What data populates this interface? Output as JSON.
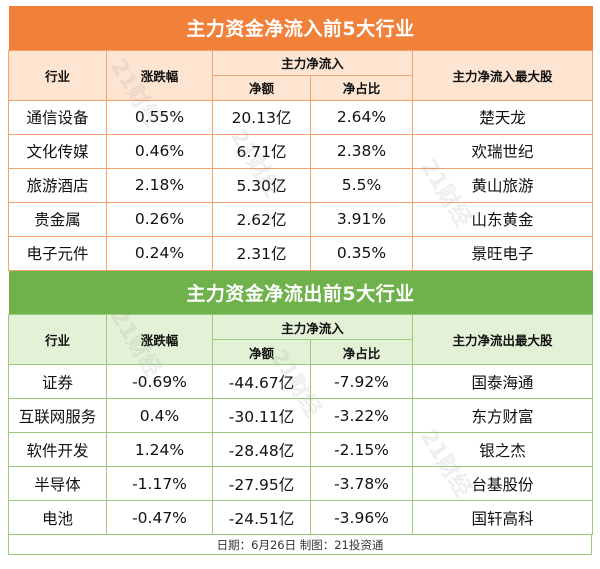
{
  "inflow": {
    "title": "主力资金净流入前5大行业",
    "headers": {
      "industry": "行业",
      "change": "涨跌幅",
      "net_inflow_group": "主力净流入",
      "net_amount": "净额",
      "net_ratio": "净占比",
      "top_stock": "主力净流入最大股"
    },
    "rows": [
      {
        "industry": "通信设备",
        "change": "0.55%",
        "amount": "20.13亿",
        "ratio": "2.64%",
        "stock": "楚天龙"
      },
      {
        "industry": "文化传媒",
        "change": "0.46%",
        "amount": "6.71亿",
        "ratio": "2.38%",
        "stock": "欢瑞世纪"
      },
      {
        "industry": "旅游酒店",
        "change": "2.18%",
        "amount": "5.30亿",
        "ratio": "5.5%",
        "stock": "黄山旅游"
      },
      {
        "industry": "贵金属",
        "change": "0.26%",
        "amount": "2.62亿",
        "ratio": "3.91%",
        "stock": "山东黄金"
      },
      {
        "industry": "电子元件",
        "change": "0.24%",
        "amount": "2.31亿",
        "ratio": "0.35%",
        "stock": "景旺电子"
      }
    ]
  },
  "outflow": {
    "title": "主力资金净流出前5大行业",
    "headers": {
      "industry": "行业",
      "change": "涨跌幅",
      "net_inflow_group": "主力净流入",
      "net_amount": "净额",
      "net_ratio": "净占比",
      "top_stock": "主力净流出最大股"
    },
    "rows": [
      {
        "industry": "证券",
        "change": "-0.69%",
        "amount": "-44.67亿",
        "ratio": "-7.92%",
        "stock": "国泰海通"
      },
      {
        "industry": "互联网服务",
        "change": "0.4%",
        "amount": "-30.11亿",
        "ratio": "-3.22%",
        "stock": "东方财富"
      },
      {
        "industry": "软件开发",
        "change": "1.24%",
        "amount": "-28.48亿",
        "ratio": "-2.15%",
        "stock": "银之杰"
      },
      {
        "industry": "半导体",
        "change": "-1.17%",
        "amount": "-27.95亿",
        "ratio": "-3.78%",
        "stock": "台基股份"
      },
      {
        "industry": "电池",
        "change": "-0.47%",
        "amount": "-24.51亿",
        "ratio": "-3.96%",
        "stock": "国轩高科"
      }
    ]
  },
  "footer": "日期：6月26日 制图：21投资通",
  "watermark": "21财经",
  "colors": {
    "inflow_banner": "#f0803a",
    "inflow_header": "#fde5d2",
    "outflow_banner": "#6fb24c",
    "outflow_header": "#e3f1d6"
  }
}
